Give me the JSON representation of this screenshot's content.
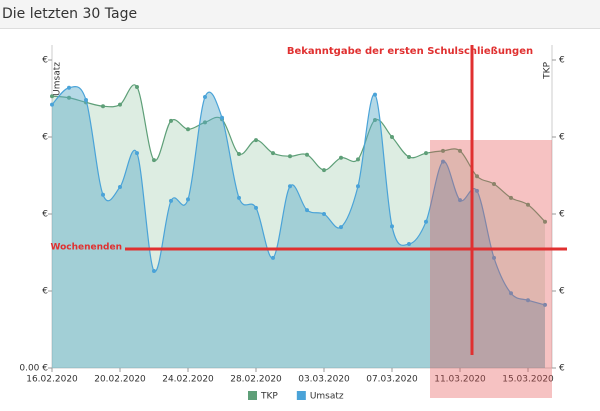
{
  "header": {
    "title": "Die letzten 30 Tage"
  },
  "chart_data": {
    "type": "line",
    "categories": [
      "16.02.2020",
      null,
      null,
      null,
      "20.02.2020",
      null,
      null,
      null,
      "24.02.2020",
      null,
      null,
      null,
      "28.02.2020",
      null,
      null,
      null,
      "03.03.2020",
      null,
      null,
      null,
      "07.03.2020",
      null,
      null,
      null,
      "11.03.2020",
      null,
      null,
      null,
      "15.03.2020",
      null
    ],
    "series": [
      {
        "name": "TKP",
        "color": "#5e9f78",
        "axis": "y2",
        "values": [
          3.53,
          3.51,
          3.45,
          3.4,
          3.42,
          3.65,
          2.7,
          3.21,
          3.1,
          3.19,
          3.23,
          2.78,
          2.96,
          2.79,
          2.75,
          2.77,
          2.57,
          2.73,
          2.71,
          3.22,
          3.0,
          2.74,
          2.79,
          2.82,
          2.82,
          2.49,
          2.39,
          2.21,
          2.12,
          1.9
        ]
      },
      {
        "name": "Umsatz",
        "color": "#4aa3d8",
        "values": [
          3.42,
          3.64,
          3.48,
          2.25,
          2.35,
          2.79,
          1.26,
          2.17,
          2.19,
          3.52,
          3.25,
          2.21,
          2.08,
          1.43,
          2.36,
          2.05,
          2.0,
          1.83,
          2.36,
          3.55,
          1.84,
          1.61,
          1.9,
          2.68,
          2.18,
          2.3,
          1.43,
          0.97,
          0.88,
          0.82
        ]
      }
    ],
    "y_label": "Umsatz",
    "y2_label": "TKP",
    "ylim": [
      0,
      4
    ],
    "yticks": [
      {
        "value": 0,
        "label": "0.00 €"
      },
      {
        "value": 1,
        "label": "€"
      },
      {
        "value": 2,
        "label": "€"
      },
      {
        "value": 3,
        "label": "€"
      },
      {
        "value": 4,
        "label": "€"
      }
    ],
    "y2lim": [
      0,
      4
    ],
    "y2ticks": [
      {
        "value": 0,
        "label": "€"
      },
      {
        "value": 1,
        "label": "€"
      },
      {
        "value": 2,
        "label": "€"
      },
      {
        "value": 3,
        "label": "€"
      },
      {
        "value": 4,
        "label": "€"
      }
    ],
    "annotations": [
      "Bekanntgabe der ersten Schulschließungen",
      "Wochenenden"
    ],
    "legend": "bottom"
  }
}
